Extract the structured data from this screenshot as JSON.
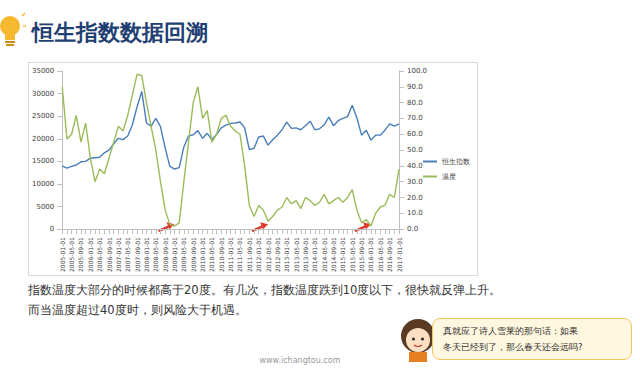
{
  "slide": {
    "title": "恒生指数数据回溯",
    "body": [
      "指数温度大部分的时候都高于20度。有几次，指数温度跌到10度以下，很快就反弹上升。",
      "而当温度超过40度时，则风险大于机遇。"
    ],
    "callout": [
      "真就应了诗人雪莱的那句话：如果",
      "冬天已经到了，那么春天还会远吗?"
    ],
    "footer": "www.ichangtou.com"
  },
  "chart_data": {
    "type": "line",
    "categories": [
      "2005-01-01",
      null,
      "2005-05-01",
      null,
      "2005-09-01",
      null,
      "2006-01-01",
      null,
      "2006-05-01",
      null,
      "2006-09-01",
      null,
      "2007-01-01",
      null,
      "2007-05-01",
      null,
      "2007-09-01",
      null,
      "2008-01-01",
      null,
      "2008-05-01",
      null,
      "2008-09-01",
      null,
      "2009-01-01",
      null,
      "2009-05-01",
      null,
      "2009-09-01",
      null,
      "2010-01-01",
      null,
      "2010-05-01",
      null,
      "2010-09-01",
      null,
      "2011-01-01",
      null,
      "2011-05-01",
      null,
      "2011-09-01",
      null,
      "2012-01-01",
      null,
      "2012-05-01",
      null,
      "2012-09-01",
      null,
      "2013-01-01",
      null,
      "2013-05-01",
      null,
      "2013-09-01",
      null,
      "2014-01-01",
      null,
      "2014-05-01",
      null,
      "2014-09-01",
      null,
      "2015-01-01",
      null,
      "2015-05-01",
      null,
      "2015-09-01",
      null,
      "2016-01-01",
      null,
      "2016-05-01",
      null,
      "2016-09-01",
      null,
      "2017-01-01"
    ],
    "series": [
      {
        "name": "恒生指数",
        "color": "#4a7ebb",
        "values": [
          14000,
          13500,
          13900,
          14200,
          14900,
          15000,
          15700,
          15800,
          15900,
          16900,
          17500,
          18900,
          20100,
          19800,
          20600,
          23100,
          27100,
          30500,
          23500,
          22800,
          24500,
          22700,
          18000,
          13900,
          13300,
          13600,
          18200,
          20600,
          20900,
          21800,
          20100,
          21200,
          19800,
          21000,
          22400,
          23000,
          23400,
          23500,
          23700,
          22400,
          17600,
          17900,
          20400,
          20600,
          18600,
          19800,
          20800,
          22000,
          23700,
          22300,
          22400,
          22000,
          22900,
          23900,
          22000,
          22200,
          23100,
          24800,
          22900,
          24000,
          24500,
          24900,
          27400,
          24600,
          20800,
          21900,
          19700,
          20800,
          20800,
          21900,
          23300,
          22800,
          23300
        ]
      },
      {
        "name": "温度",
        "color": "#9bbb59",
        "axis": "y2",
        "values": [
          90,
          57,
          60,
          72,
          55,
          67,
          45,
          30,
          38,
          35,
          45,
          55,
          65,
          62,
          72,
          85,
          98,
          97,
          80,
          65,
          50,
          30,
          12,
          3,
          2,
          4,
          30,
          55,
          80,
          90,
          70,
          75,
          55,
          60,
          70,
          72,
          65,
          62,
          60,
          40,
          15,
          8,
          15,
          12,
          5,
          8,
          12,
          14,
          20,
          16,
          18,
          13,
          20,
          18,
          15,
          17,
          22,
          16,
          18,
          20,
          17,
          20,
          25,
          12,
          4,
          6,
          2,
          10,
          14,
          15,
          22,
          20,
          38
        ]
      }
    ],
    "ylim": [
      0,
      35000
    ],
    "yticks": [
      0,
      5000,
      10000,
      15000,
      20000,
      25000,
      30000,
      35000
    ],
    "y2lim": [
      0,
      100
    ],
    "y2ticks": [
      {
        "value": 0,
        "label": "0.0"
      },
      {
        "value": 10,
        "label": "10.0"
      },
      {
        "value": 20,
        "label": "20.0"
      },
      {
        "value": 30,
        "label": "30.0"
      },
      {
        "value": 40,
        "label": "40.0"
      },
      {
        "value": 50,
        "label": "50.0"
      },
      {
        "value": 60,
        "label": "60.0"
      },
      {
        "value": 70,
        "label": "70.0"
      },
      {
        "value": 80,
        "label": "80.0"
      },
      {
        "value": 90,
        "label": "90.0"
      },
      {
        "value": 100,
        "label": "100.0"
      }
    ],
    "grid": false,
    "legend": "right"
  }
}
